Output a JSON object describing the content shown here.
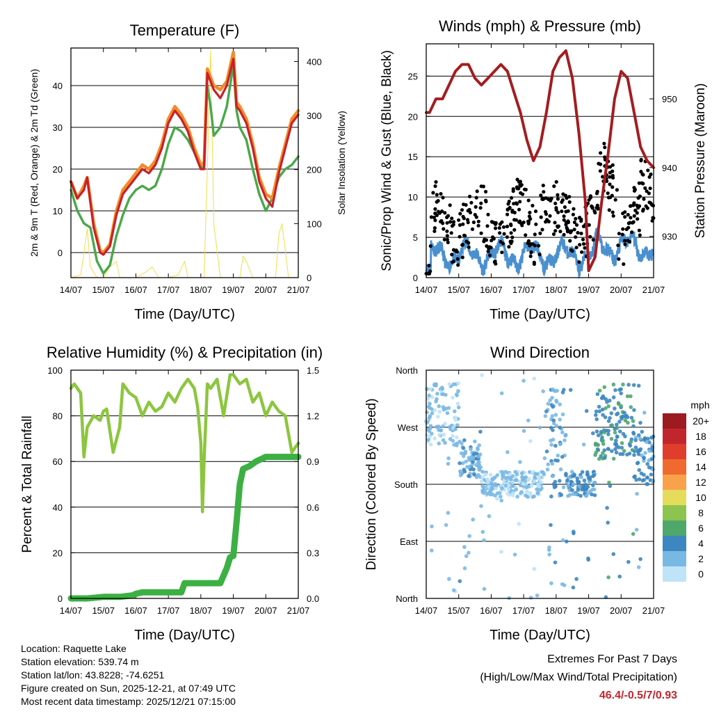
{
  "station_info": {
    "location": "Location: Raquette Lake",
    "elevation": "Station elevation: 539.74 m",
    "latlon": "Station lat/lon: 43.8228; -74.6251",
    "created": "Figure created on Sun, 2025-12-21, at 07:49 UTC",
    "timestamp": "Most recent data timestamp: 2025/12/21 07:15:00"
  },
  "extremes": {
    "title": "Extremes For Past 7 Days",
    "subtitle": "(High/Low/Max Wind/Total Precipitation)",
    "values": "46.4/-0.5/7/0.93",
    "color": "#c2262d"
  },
  "colorbar": {
    "title": "mph",
    "labels": [
      "20+",
      "18",
      "16",
      "14",
      "12",
      "10",
      "8",
      "6",
      "4",
      "2",
      "0"
    ],
    "colors": [
      "#9b1b1f",
      "#c2262d",
      "#e03e2d",
      "#f06a2f",
      "#f9a24b",
      "#e4dc5a",
      "#8cc44f",
      "#4ea86b",
      "#3d87c0",
      "#7ab8e4",
      "#bfe3f7"
    ]
  },
  "chart_data": [
    {
      "type": "line",
      "title": "Temperature (F)",
      "xlabel": "Time (Day/UTC)",
      "ylabel": "2m & 9m T (Red, Orange) & 2m Td (Green)",
      "ylabel_right": "Solar Insolation (Yellow)",
      "xlim": [
        0,
        7
      ],
      "xticks": [
        "14/07",
        "15/07",
        "16/07",
        "17/07",
        "18/07",
        "19/07",
        "20/07",
        "21/07"
      ],
      "ylim": [
        -6,
        49
      ],
      "yticks": [
        0,
        10,
        20,
        30,
        40
      ],
      "ylim_right": [
        0,
        425
      ],
      "yticks_right": [
        0,
        100,
        200,
        300,
        400
      ],
      "series": [
        {
          "name": "9m T",
          "color": "#f28c28",
          "x": [
            0,
            0.2,
            0.4,
            0.5,
            0.7,
            0.9,
            1.0,
            1.2,
            1.4,
            1.6,
            1.8,
            2.0,
            2.2,
            2.4,
            2.6,
            2.8,
            3.0,
            3.2,
            3.4,
            3.6,
            3.8,
            4.0,
            4.1,
            4.2,
            4.3,
            4.4,
            4.6,
            4.8,
            5.0,
            5.1,
            5.2,
            5.4,
            5.6,
            5.8,
            6.0,
            6.2,
            6.4,
            6.6,
            6.8,
            7.0
          ],
          "y": [
            17,
            13,
            16,
            18,
            7,
            0.5,
            0,
            2,
            10,
            15,
            17,
            19,
            21,
            20,
            22,
            26,
            32,
            35,
            33,
            30,
            25,
            21,
            21,
            44,
            42,
            40,
            39,
            41,
            48,
            36,
            35,
            32,
            26,
            18,
            14,
            13,
            20,
            26,
            32,
            34
          ]
        },
        {
          "name": "2m T",
          "color": "#c8202a",
          "x": [
            0,
            0.2,
            0.4,
            0.5,
            0.7,
            0.9,
            1.0,
            1.2,
            1.4,
            1.6,
            1.8,
            2.0,
            2.2,
            2.4,
            2.6,
            2.8,
            3.0,
            3.2,
            3.4,
            3.6,
            3.8,
            4.0,
            4.1,
            4.2,
            4.3,
            4.4,
            4.6,
            4.8,
            5.0,
            5.1,
            5.2,
            5.4,
            5.6,
            5.8,
            6.0,
            6.2,
            6.4,
            6.6,
            6.8,
            7.0
          ],
          "y": [
            17,
            13,
            15,
            18,
            6,
            0,
            -0.5,
            1.5,
            9,
            14,
            16,
            18,
            20,
            19,
            21,
            25,
            31,
            34,
            32,
            29,
            24,
            20,
            20,
            43,
            41,
            39,
            37,
            40,
            46.4,
            35,
            34,
            31,
            25,
            17,
            13,
            11,
            19,
            25,
            31,
            33
          ]
        },
        {
          "name": "2m Td",
          "color": "#4aa84a",
          "x": [
            0,
            0.2,
            0.4,
            0.6,
            0.8,
            1.0,
            1.2,
            1.4,
            1.6,
            1.8,
            2.0,
            2.2,
            2.4,
            2.6,
            2.8,
            3.0,
            3.2,
            3.4,
            3.6,
            3.8,
            4.0,
            4.1,
            4.2,
            4.3,
            4.4,
            4.6,
            4.8,
            5.0,
            5.1,
            5.2,
            5.4,
            5.6,
            5.8,
            6.0,
            6.2,
            6.4,
            6.6,
            6.8,
            7.0
          ],
          "y": [
            15,
            10,
            7,
            6,
            -2,
            -5,
            -3,
            4,
            9,
            13,
            15,
            16,
            15,
            16,
            20,
            26,
            30,
            29,
            27,
            24,
            20,
            22,
            40,
            35,
            28,
            30,
            35,
            45,
            34,
            30,
            27,
            20,
            14,
            10,
            13,
            18,
            20,
            21,
            23
          ]
        },
        {
          "name": "Solar Insolation",
          "color": "#f2dc4a",
          "axis": "right",
          "x": [
            0,
            0.3,
            0.4,
            0.5,
            0.6,
            0.8,
            1.0,
            1.2,
            1.4,
            1.5,
            1.7,
            2.0,
            2.3,
            2.5,
            2.7,
            3.0,
            3.3,
            3.5,
            3.6,
            3.8,
            4.1,
            4.2,
            4.3,
            4.4,
            4.6,
            4.8,
            5.0,
            5.2,
            5.3,
            5.4,
            5.6,
            6.0,
            6.3,
            6.4,
            6.5,
            6.7,
            7.0
          ],
          "y": [
            0,
            5,
            45,
            90,
            20,
            0,
            0,
            20,
            30,
            0,
            0,
            0,
            10,
            20,
            0,
            0,
            5,
            30,
            0,
            0,
            0,
            200,
            420,
            100,
            0,
            0,
            0,
            0,
            40,
            30,
            0,
            0,
            0,
            80,
            100,
            0,
            0
          ]
        }
      ]
    },
    {
      "type": "scatter",
      "title": "Winds (mph) & Pressure (mb)",
      "xlabel": "Time (Day/UTC)",
      "ylabel": "Sonic/Prop Wind & Gust (Blue, Black)",
      "ylabel_right": "Station Pressure (Maroon)",
      "xlim": [
        0,
        7
      ],
      "xticks": [
        "14/07",
        "15/07",
        "16/07",
        "17/07",
        "18/07",
        "19/07",
        "20/07",
        "21/07"
      ],
      "ylim": [
        0,
        29
      ],
      "yticks": [
        0,
        5,
        10,
        15,
        20,
        25
      ],
      "ylim_right": [
        924,
        958
      ],
      "yticks_right": [
        930,
        940,
        950
      ],
      "series": [
        {
          "name": "Station Pressure",
          "color": "#a31d20",
          "type": "line",
          "axis": "right",
          "x": [
            0,
            0.1,
            0.3,
            0.5,
            0.7,
            0.9,
            1.1,
            1.3,
            1.5,
            1.7,
            1.9,
            2.1,
            2.3,
            2.5,
            2.7,
            2.9,
            3.1,
            3.3,
            3.5,
            3.7,
            3.9,
            4.1,
            4.3,
            4.5,
            4.7,
            4.9,
            5.0,
            5.2,
            5.4,
            5.6,
            5.8,
            6.0,
            6.2,
            6.4,
            6.6,
            6.8,
            7.0
          ],
          "y": [
            948,
            948,
            950,
            950,
            952,
            954,
            955,
            955,
            953,
            952,
            953,
            954,
            955,
            954,
            951,
            948,
            944,
            941,
            943,
            948,
            954,
            956,
            957,
            953,
            945,
            935,
            925,
            927,
            935,
            942,
            950,
            954,
            953,
            948,
            943,
            941,
            940
          ]
        },
        {
          "name": "Gust",
          "color": "#000000",
          "type": "scatter",
          "points": 420
        },
        {
          "name": "Wind",
          "color": "#4a90d0",
          "type": "line-band",
          "points": 700
        }
      ]
    },
    {
      "type": "line",
      "title": "Relative Humidity (%) & Precipitation (in)",
      "xlabel": "Time (Day/UTC)",
      "ylabel": "Percent & Total Rainfall",
      "xlim": [
        0,
        7
      ],
      "xticks": [
        "14/07",
        "15/07",
        "16/07",
        "17/07",
        "18/07",
        "19/07",
        "20/07",
        "21/07"
      ],
      "ylim": [
        0,
        100
      ],
      "yticks": [
        0,
        20,
        40,
        60,
        80,
        100
      ],
      "ylim_right": [
        0,
        1.5
      ],
      "yticks_right": [
        "0.0",
        "0.3",
        "0.6",
        "0.9",
        "1.2",
        "1.5"
      ],
      "series": [
        {
          "name": "Relative Humidity",
          "color": "#8cc63f",
          "x": [
            0,
            0.1,
            0.3,
            0.4,
            0.5,
            0.7,
            0.9,
            1.0,
            1.1,
            1.3,
            1.5,
            1.6,
            1.8,
            2.0,
            2.2,
            2.4,
            2.6,
            2.8,
            3.0,
            3.2,
            3.4,
            3.6,
            3.8,
            3.9,
            4.0,
            4.05,
            4.1,
            4.2,
            4.3,
            4.5,
            4.7,
            4.9,
            5.0,
            5.2,
            5.4,
            5.6,
            5.8,
            6.0,
            6.2,
            6.4,
            6.6,
            6.7,
            6.8,
            6.9,
            7.0
          ],
          "y": [
            92,
            94,
            90,
            62,
            75,
            80,
            78,
            82,
            83,
            64,
            75,
            94,
            90,
            88,
            80,
            86,
            82,
            84,
            90,
            86,
            92,
            96,
            92,
            84,
            68,
            38,
            60,
            94,
            92,
            96,
            80,
            98,
            98,
            94,
            96,
            86,
            90,
            80,
            86,
            82,
            80,
            72,
            64,
            66,
            68
          ]
        },
        {
          "name": "Total Precipitation",
          "color": "#3cb043",
          "axis": "right",
          "x": [
            0,
            0.5,
            1.0,
            1.5,
            1.9,
            2.0,
            2.2,
            2.5,
            3.0,
            3.4,
            3.5,
            3.6,
            3.8,
            4.0,
            4.3,
            4.6,
            4.8,
            4.9,
            5.0,
            5.1,
            5.2,
            5.3,
            5.5,
            5.7,
            6.0,
            6.5,
            7.0
          ],
          "y": [
            0.0,
            0.0,
            0.01,
            0.01,
            0.02,
            0.03,
            0.04,
            0.04,
            0.04,
            0.04,
            0.1,
            0.1,
            0.1,
            0.1,
            0.1,
            0.1,
            0.2,
            0.27,
            0.28,
            0.5,
            0.75,
            0.85,
            0.87,
            0.9,
            0.93,
            0.93,
            0.93
          ]
        }
      ]
    },
    {
      "type": "scatter",
      "title": "Wind Direction",
      "xlabel": "Time (Day/UTC)",
      "ylabel": "Direction (Colored By Speed)",
      "xlim": [
        0,
        7
      ],
      "xticks": [
        "14/07",
        "15/07",
        "16/07",
        "17/07",
        "18/07",
        "19/07",
        "20/07",
        "21/07"
      ],
      "ylim": [
        0,
        360
      ],
      "yticks": [
        "North",
        "East",
        "South",
        "West",
        "North"
      ],
      "color_by": "speed (mph)",
      "clusters": [
        {
          "x": [
            0,
            1.0
          ],
          "dir": [
            240,
            340
          ],
          "speed": 2
        },
        {
          "x": [
            1.0,
            1.7
          ],
          "dir": [
            190,
            250
          ],
          "speed": 3
        },
        {
          "x": [
            1.7,
            3.6
          ],
          "dir": [
            160,
            200
          ],
          "speed": 2
        },
        {
          "x": [
            3.6,
            4.3
          ],
          "dir": [
            160,
            330
          ],
          "speed": 3
        },
        {
          "x": [
            4.3,
            5.2
          ],
          "dir": [
            160,
            200
          ],
          "speed": 4
        },
        {
          "x": [
            5.2,
            6.4
          ],
          "dir": [
            220,
            340
          ],
          "speed": 5
        },
        {
          "x": [
            6.4,
            7.0
          ],
          "dir": [
            180,
            260
          ],
          "speed": 4
        }
      ]
    }
  ]
}
